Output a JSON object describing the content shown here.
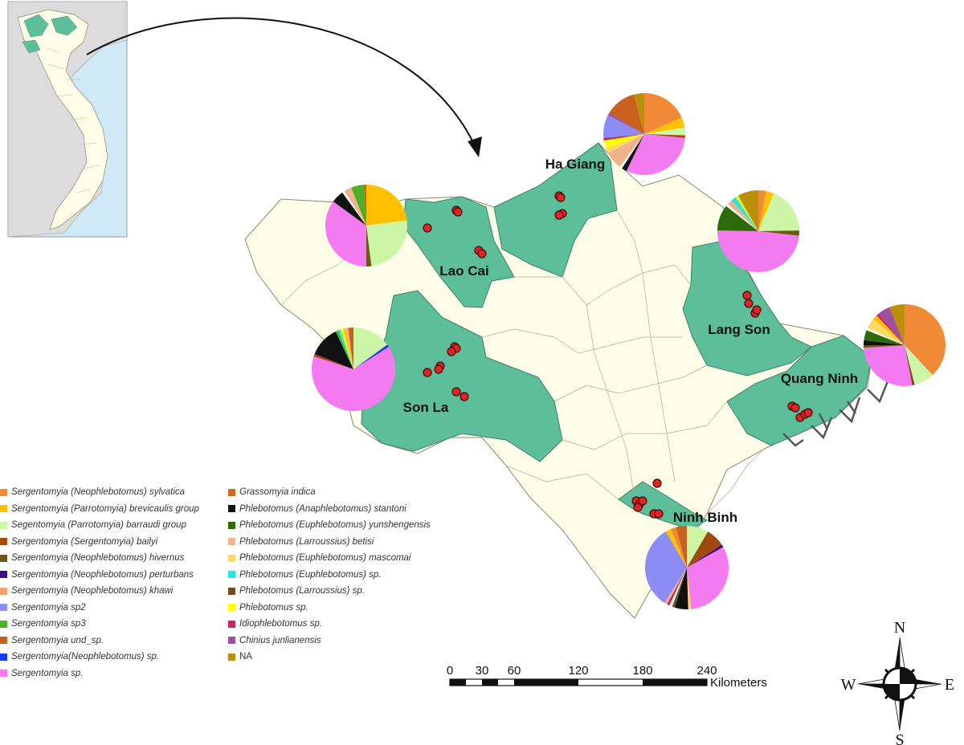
{
  "provinces": [
    {
      "name": "Ha Giang"
    },
    {
      "name": "Lao Cai"
    },
    {
      "name": "Lang Son"
    },
    {
      "name": "Son La"
    },
    {
      "name": "Quang Ninh"
    },
    {
      "name": "Ninh Binh"
    }
  ],
  "legend": [
    {
      "label": "Sergentomyia (Neophlebotomus) sylvatica",
      "color": "#f08a36",
      "italic": true
    },
    {
      "label": "Sergentomyia (Parrotomyia) brevicaulis group",
      "color": "#ffc000",
      "italic": true
    },
    {
      "label": "Segentomyia (Parrotomyia) barraudi group",
      "color": "#ccf5a6",
      "italic": true
    },
    {
      "label": "Sergentomyia (Sergentomyia) bailyi",
      "color": "#a04a10",
      "italic": true
    },
    {
      "label": "Sergentomyia (Neophlebotomus) hivernus",
      "color": "#6b5b12",
      "italic": true
    },
    {
      "label": "Sergentomyia (Neophlebotomus) perturbans",
      "color": "#3a0a80",
      "italic": true
    },
    {
      "label": "Sergentomyia (Neophlebotomus) khawi",
      "color": "#f4a070",
      "italic": true
    },
    {
      "label": "Sergentomyia sp2",
      "color": "#8c8cf5",
      "italic": true
    },
    {
      "label": "Sergentomyia sp3",
      "color": "#4caf28",
      "italic": true
    },
    {
      "label": "Sergentomyia und_sp.",
      "color": "#c8601e",
      "italic": true
    },
    {
      "label": "Sergentomyia(Neophlebotomus) sp.",
      "color": "#1a3cff",
      "italic": true
    },
    {
      "label": "Sergentomyia sp.",
      "color": "#f47af0",
      "italic": true
    },
    {
      "label": "Grassomyia indica",
      "color": "#d2691e",
      "italic": true
    },
    {
      "label": "Phlebotomus (Anaphlebotomus) stantoni",
      "color": "#111111",
      "italic": true
    },
    {
      "label": "Phlebotomus (Euphlebotomus) yunshengensis",
      "color": "#2d6a0a",
      "italic": true
    },
    {
      "label": "Phlebotomus (Larroussius) betisi",
      "color": "#f0b48c",
      "italic": true
    },
    {
      "label": "Phlebotomus (Euphlebotomus) mascomai",
      "color": "#ffd966",
      "italic": true
    },
    {
      "label": "Phlebotomus (Euphlebotomus) sp.",
      "color": "#22e8e0",
      "italic": true
    },
    {
      "label": "Phlebotomus (Larroussius) sp.",
      "color": "#7a4a1a",
      "italic": true
    },
    {
      "label": "Phlebotomus sp.",
      "color": "#ffff00",
      "italic": true
    },
    {
      "label": "Idiophlebotomus sp.",
      "color": "#c8285a",
      "italic": true
    },
    {
      "label": "Chinius junlianensis",
      "color": "#a050a0",
      "italic": true
    },
    {
      "label": "NA",
      "color": "#b8900a",
      "italic": false
    }
  ],
  "scale": {
    "ticks": [
      "0",
      "30",
      "60",
      "120",
      "180",
      "240"
    ],
    "values": [
      0,
      30,
      60,
      120,
      180,
      240
    ],
    "unit": "Kilometers"
  },
  "compass": {
    "n": "N",
    "s": "S",
    "e": "E",
    "w": "W"
  },
  "colors": {
    "highlight": "#5dbf9a",
    "land": "#fdfde8",
    "sea": "#cfe9f7",
    "other_country": "#dcdcdc",
    "site": "#e02424"
  },
  "pies": [
    {
      "province": "Ha Giang",
      "slices": [
        [
          "#f08a36",
          18
        ],
        [
          "#ffc000",
          4
        ],
        [
          "#ccf5a6",
          3
        ],
        [
          "#a04a10",
          1
        ],
        [
          "#f47af0",
          30
        ],
        [
          "#111111",
          2
        ],
        [
          "#ffffff",
          1
        ],
        [
          "#f0b48c",
          7
        ],
        [
          "#ffd966",
          2
        ],
        [
          "#ffff00",
          3
        ],
        [
          "#c8285a",
          1
        ],
        [
          "#8c8cf5",
          9
        ],
        [
          "#a050a0",
          1
        ],
        [
          "#c8601e",
          12
        ],
        [
          "#b8900a",
          4
        ]
      ]
    },
    {
      "province": "Lao Cai",
      "slices": [
        [
          "#ffc000",
          23
        ],
        [
          "#ccf5a6",
          25
        ],
        [
          "#6b5b12",
          2
        ],
        [
          "#f47af0",
          35
        ],
        [
          "#111111",
          5
        ],
        [
          "#ffffff",
          1
        ],
        [
          "#f0b48c",
          3
        ],
        [
          "#4caf28",
          5
        ],
        [
          "#c8601e",
          1
        ]
      ]
    },
    {
      "province": "Lang Son",
      "slices": [
        [
          "#f08a36",
          3
        ],
        [
          "#ffc000",
          3
        ],
        [
          "#ccf5a6",
          18
        ],
        [
          "#6b5b12",
          2
        ],
        [
          "#f47af0",
          47
        ],
        [
          "#2d6a0a",
          10
        ],
        [
          "#ffffff",
          1
        ],
        [
          "#f0b48c",
          2
        ],
        [
          "#22e8e0",
          2
        ],
        [
          "#ffff00",
          1
        ],
        [
          "#b8900a",
          8
        ]
      ]
    },
    {
      "province": "Quang Ninh",
      "slices": [
        [
          "#f08a36",
          38
        ],
        [
          "#ccf5a6",
          8
        ],
        [
          "#7a4a1a",
          1
        ],
        [
          "#f47af0",
          27
        ],
        [
          "#6b5b12",
          1
        ],
        [
          "#111111",
          2
        ],
        [
          "#2d6a0a",
          4
        ],
        [
          "#ffffff",
          1
        ],
        [
          "#ffd966",
          4
        ],
        [
          "#ffc000",
          2
        ],
        [
          "#c8285a",
          1
        ],
        [
          "#a050a0",
          5
        ],
        [
          "#b8900a",
          6
        ]
      ]
    },
    {
      "province": "Son La",
      "slices": [
        [
          "#ccf5a6",
          15
        ],
        [
          "#1a3cff",
          1
        ],
        [
          "#f47af0",
          64
        ],
        [
          "#a04a10",
          1
        ],
        [
          "#111111",
          12
        ],
        [
          "#4caf28",
          1
        ],
        [
          "#22e8e0",
          1
        ],
        [
          "#ffff00",
          1
        ],
        [
          "#ffc000",
          1
        ],
        [
          "#f0b48c",
          1
        ],
        [
          "#c8601e",
          2
        ]
      ]
    },
    {
      "province": "Ninh Binh",
      "slices": [
        [
          "#ccf5a6",
          8
        ],
        [
          "#a04a10",
          7
        ],
        [
          "#3a0a80",
          1
        ],
        [
          "#f47af0",
          30
        ],
        [
          "#ffd966",
          1
        ],
        [
          "#111111",
          5
        ],
        [
          "#6b5b12",
          1
        ],
        [
          "#ffffff",
          1
        ],
        [
          "#c8285a",
          1
        ],
        [
          "#f0b48c",
          1
        ],
        [
          "#8c8cf5",
          31
        ],
        [
          "#ffc000",
          2
        ],
        [
          "#f08a36",
          2
        ],
        [
          "#c8601e",
          4
        ]
      ]
    }
  ]
}
